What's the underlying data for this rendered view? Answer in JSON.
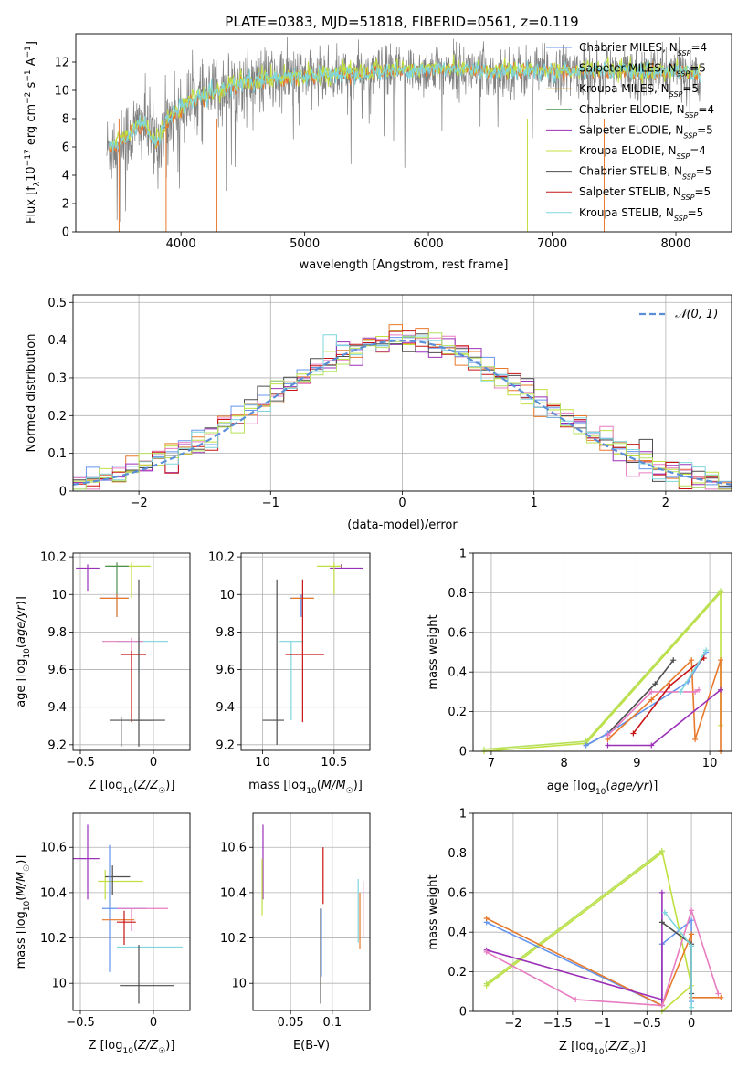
{
  "figure": {
    "title": "PLATE=0383, MJD=51818, FIBERID=0561, z=0.119"
  },
  "colors": {
    "chabrier_miles": "#6495ed",
    "salpeter_miles": "#e8792b",
    "kroupa_miles": "#d4a017",
    "chabrier_elodie": "#4f8f4f",
    "salpeter_elodie": "#9b30b8",
    "kroupa_elodie": "#c0e040",
    "chabrier_stelib": "#4d4d4d",
    "salpeter_stelib": "#c81414",
    "kroupa_stelib": "#7fd6de",
    "data_gray": "#808080",
    "pink": "#e77cc0",
    "green": "#b6e05a",
    "gauss": "#5a8fd8"
  },
  "chart_data": [
    {
      "id": "spectrum",
      "type": "line",
      "xlabel": "wavelength [Angstrom, rest frame]",
      "ylabel": "Flux [f_λ10^-17 erg cm^-2 s^-1 A^-1]",
      "xlim": [
        3150,
        8450
      ],
      "ylim": [
        0,
        14
      ],
      "xticks": [
        4000,
        5000,
        6000,
        7000,
        8000
      ],
      "yticks": [
        0,
        2,
        4,
        6,
        8,
        10,
        12
      ],
      "grid": false,
      "legend_placement": "top-right",
      "legend": [
        "Chabrier MILES, N_SSP=4",
        "Salpeter MILES, N_SSP=5",
        "Kroupa MILES, N_SSP=5",
        "Chabrier ELODIE, N_SSP=4",
        "Salpeter ELODIE, N_SSP=5",
        "Kroupa ELODIE, N_SSP=4",
        "Chabrier STELIB, N_SSP=5",
        "Salpeter STELIB, N_SSP=5",
        "Kroupa STELIB, N_SSP=5"
      ],
      "data_continuum": {
        "x": [
          3400,
          3500,
          3600,
          3700,
          3800,
          3900,
          4000,
          4100,
          4200,
          4300,
          4400,
          4500,
          4700,
          5000,
          5300,
          5600,
          5900,
          6200,
          6500,
          6800,
          7100,
          7400,
          7700,
          8000,
          8200
        ],
        "y": [
          5.8,
          6.3,
          7.0,
          7.7,
          6.2,
          8.0,
          8.7,
          9.3,
          9.5,
          9.8,
          10.3,
          10.5,
          10.7,
          11.0,
          11.1,
          11.3,
          11.4,
          11.5,
          11.3,
          11.3,
          11.3,
          11.4,
          11.2,
          11.3,
          11.1
        ]
      }
    },
    {
      "id": "residuals",
      "type": "histogram",
      "xlabel": "(data-model)/error",
      "ylabel": "Normed distribution",
      "xlim": [
        -2.5,
        2.5
      ],
      "ylim": [
        0,
        0.52
      ],
      "xticks": [
        -2,
        -1,
        0,
        1,
        2
      ],
      "yticks": [
        0,
        0.1,
        0.2,
        0.3,
        0.4,
        0.5
      ],
      "grid": true,
      "legend_placement": "top-right",
      "legend": [
        "N(0,1)"
      ],
      "gaussian": {
        "mean": 0,
        "sigma": 1
      }
    },
    {
      "id": "age_vs_Z",
      "type": "scatter",
      "xlabel": "Z [log10(Z/Z☉)]",
      "ylabel": "age [log10(age/yr)]",
      "xlim": [
        -0.55,
        0.25
      ],
      "ylim": [
        9.17,
        10.22
      ],
      "xticks": [
        -0.5,
        0.0
      ],
      "yticks": [
        9.2,
        9.4,
        9.6,
        9.8,
        10.0,
        10.2
      ],
      "grid": true,
      "points": [
        {
          "x": -0.45,
          "y": 10.14,
          "xerr": [
            0.08,
            0.08
          ],
          "yerr": [
            0.12,
            0.02
          ],
          "c": "salpeter_elodie"
        },
        {
          "x": -0.15,
          "y": 10.15,
          "xerr": [
            0.17,
            0.13
          ],
          "yerr": [
            0.17,
            0.02
          ],
          "c": "kroupa_elodie"
        },
        {
          "x": -0.25,
          "y": 10.15,
          "xerr": [
            0.08,
            0.08
          ],
          "yerr": [
            0.17,
            0.02
          ],
          "c": "chabrier_elodie"
        },
        {
          "x": -0.25,
          "y": 9.98,
          "xerr": [
            0.12,
            0.08
          ],
          "yerr": [
            0.1,
            0.02
          ],
          "c": "chabrier_miles"
        },
        {
          "x": -0.25,
          "y": 9.98,
          "xerr": [
            0.12,
            0.08
          ],
          "yerr": [
            0.1,
            0.02
          ],
          "c": "salpeter_miles"
        },
        {
          "x": -0.1,
          "y": 9.75,
          "xerr": [
            0.15,
            0.2
          ],
          "yerr": [
            0.17,
            0.02
          ],
          "c": "kroupa_stelib"
        },
        {
          "x": -0.15,
          "y": 9.75,
          "xerr": [
            0.2,
            0.08
          ],
          "yerr": [
            0.17,
            0.02
          ],
          "c": "pink"
        },
        {
          "x": -0.15,
          "y": 9.68,
          "xerr": [
            0.07,
            0.1
          ],
          "yerr": [
            0.36,
            0.02
          ],
          "c": "salpeter_stelib"
        },
        {
          "x": -0.22,
          "y": 9.33,
          "xerr": [
            0.08,
            0.3
          ],
          "yerr": [
            0.14,
            0.02
          ],
          "c": "chabrier_stelib"
        },
        {
          "x": -0.1,
          "y": 9.33,
          "xerr": [
            0.05,
            0.1
          ],
          "yerr": [
            0.14,
            0.75
          ],
          "c": "chabrier_stelib"
        }
      ]
    },
    {
      "id": "age_vs_mass",
      "type": "scatter",
      "xlabel": "mass [log10(M/M☉)]",
      "ylabel": "",
      "xlim": [
        9.85,
        10.75
      ],
      "ylim": [
        9.17,
        10.22
      ],
      "xticks": [
        10.0,
        10.5
      ],
      "yticks": [
        9.2,
        9.4,
        9.6,
        9.8,
        10.0,
        10.2
      ],
      "grid": true,
      "points": [
        {
          "x": 10.55,
          "y": 10.14,
          "xerr": [
            0.08,
            0.15
          ],
          "yerr": [
            0.0,
            0.02
          ],
          "c": "salpeter_elodie"
        },
        {
          "x": 10.5,
          "y": 10.15,
          "xerr": [
            0.12,
            0.05
          ],
          "yerr": [
            0.15,
            0.02
          ],
          "c": "kroupa_elodie"
        },
        {
          "x": 10.27,
          "y": 9.98,
          "xerr": [
            0.08,
            0.08
          ],
          "yerr": [
            0.1,
            0.02
          ],
          "c": "chabrier_miles"
        },
        {
          "x": 10.28,
          "y": 9.98,
          "xerr": [
            0.08,
            0.08
          ],
          "yerr": [
            0.1,
            0.02
          ],
          "c": "salpeter_miles"
        },
        {
          "x": 10.2,
          "y": 9.75,
          "xerr": [
            0.08,
            0.08
          ],
          "yerr": [
            0.42,
            0.0
          ],
          "c": "kroupa_stelib"
        },
        {
          "x": 10.28,
          "y": 9.68,
          "xerr": [
            0.12,
            0.15
          ],
          "yerr": [
            0.36,
            0.4
          ],
          "c": "salpeter_stelib"
        },
        {
          "x": 10.1,
          "y": 9.33,
          "xerr": [
            0.1,
            0.05
          ],
          "yerr": [
            0.13,
            0.75
          ],
          "c": "chabrier_stelib"
        }
      ]
    },
    {
      "id": "weight_vs_age",
      "type": "line",
      "xlabel": "age [log10(age/yr)]",
      "ylabel": "mass weight",
      "xlim": [
        6.75,
        10.3
      ],
      "ylim": [
        0,
        1.0
      ],
      "xticks": [
        7,
        8,
        9,
        10
      ],
      "yticks": [
        0.0,
        0.2,
        0.4,
        0.6,
        0.8,
        1.0
      ],
      "grid": true,
      "series": [
        {
          "c": "kroupa_elodie",
          "x": [
            6.9,
            8.3,
            10.15,
            10.15
          ],
          "y": [
            0.0,
            0.04,
            0.8,
            0.13
          ]
        },
        {
          "c": "green",
          "x": [
            6.9,
            8.3,
            10.15
          ],
          "y": [
            0.01,
            0.05,
            0.81
          ]
        },
        {
          "c": "chabrier_stelib",
          "x": [
            8.3,
            8.6,
            9.25,
            9.5
          ],
          "y": [
            0.03,
            0.09,
            0.34,
            0.46
          ]
        },
        {
          "c": "chabrier_miles",
          "x": [
            8.3,
            8.6,
            9.7,
            9.95
          ],
          "y": [
            0.03,
            0.09,
            0.35,
            0.5
          ]
        },
        {
          "c": "salpeter_miles",
          "x": [
            8.6,
            9.2,
            9.75,
            9.8,
            10.15,
            10.15
          ],
          "y": [
            0.06,
            0.26,
            0.46,
            0.06,
            0.46,
            0.0
          ]
        },
        {
          "c": "salpeter_elodie",
          "x": [
            8.6,
            9.2,
            10.15
          ],
          "y": [
            0.03,
            0.03,
            0.31
          ]
        },
        {
          "c": "pink",
          "x": [
            8.6,
            9.2,
            9.8,
            9.85
          ],
          "y": [
            0.08,
            0.3,
            0.3,
            0.31
          ]
        },
        {
          "c": "salpeter_stelib",
          "x": [
            8.95,
            9.45,
            9.92
          ],
          "y": [
            0.09,
            0.33,
            0.47
          ]
        },
        {
          "c": "kroupa_stelib",
          "x": [
            9.6,
            9.95
          ],
          "y": [
            0.3,
            0.51
          ]
        }
      ]
    },
    {
      "id": "mass_vs_Z",
      "type": "scatter",
      "xlabel": "Z [log10(Z/Z☉)]",
      "ylabel": "mass [log10(M/M☉)]",
      "xlim": [
        -0.55,
        0.25
      ],
      "ylim": [
        9.88,
        10.75
      ],
      "xticks": [
        -0.5,
        0.0
      ],
      "yticks": [
        10.0,
        10.2,
        10.4,
        10.6
      ],
      "grid": true,
      "points": [
        {
          "x": -0.45,
          "y": 10.55,
          "xerr": [
            0.1,
            0.08
          ],
          "yerr": [
            0.18,
            0.15
          ],
          "c": "salpeter_elodie"
        },
        {
          "x": -0.33,
          "y": 10.45,
          "xerr": [
            0.05,
            0.26
          ],
          "yerr": [
            0.08,
            0.05
          ],
          "c": "kroupa_elodie"
        },
        {
          "x": -0.28,
          "y": 10.47,
          "xerr": [
            0.05,
            0.12
          ],
          "yerr": [
            0.08,
            0.05
          ],
          "c": "chabrier_stelib"
        },
        {
          "x": -0.3,
          "y": 10.33,
          "xerr": [
            0.05,
            0.25
          ],
          "yerr": [
            0.28,
            0.28
          ],
          "c": "chabrier_miles"
        },
        {
          "x": -0.15,
          "y": 10.33,
          "xerr": [
            0.1,
            0.25
          ],
          "yerr": [
            0.1,
            0.0
          ],
          "c": "pink"
        },
        {
          "x": -0.3,
          "y": 10.28,
          "xerr": [
            0.05,
            0.17
          ],
          "yerr": [
            0.0,
            0.0
          ],
          "c": "salpeter_miles"
        },
        {
          "x": -0.2,
          "y": 10.27,
          "xerr": [
            0.05,
            0.08
          ],
          "yerr": [
            0.1,
            0.05
          ],
          "c": "salpeter_stelib"
        },
        {
          "x": -0.1,
          "y": 10.16,
          "xerr": [
            0.15,
            0.3
          ],
          "yerr": [
            0.0,
            0.0
          ],
          "c": "kroupa_stelib"
        },
        {
          "x": -0.18,
          "y": 9.99,
          "xerr": [
            0.05,
            0.32
          ],
          "yerr": [
            0.0,
            0.0
          ],
          "c": "chabrier_stelib"
        },
        {
          "x": -0.1,
          "y": 9.99,
          "xerr": [
            0.0,
            0.0
          ],
          "yerr": [
            0.08,
            0.18
          ],
          "c": "chabrier_stelib"
        }
      ]
    },
    {
      "id": "mass_vs_EBV",
      "type": "scatter",
      "xlabel": "E(B-V)",
      "ylabel": "",
      "xlim": [
        0.005,
        0.145
      ],
      "ylim": [
        9.88,
        10.75
      ],
      "xticks": [
        0.05,
        0.1
      ],
      "yticks": [
        10.0,
        10.2,
        10.4,
        10.6
      ],
      "grid": true,
      "points": [
        {
          "x": 0.017,
          "y": 10.55,
          "xerr": [
            0.0,
            0.0
          ],
          "yerr": [
            0.18,
            0.15
          ],
          "c": "salpeter_elodie"
        },
        {
          "x": 0.016,
          "y": 10.45,
          "xerr": [
            0.0,
            0.0
          ],
          "yerr": [
            0.15,
            0.1
          ],
          "c": "kroupa_elodie"
        },
        {
          "x": 0.086,
          "y": 10.33,
          "xerr": [
            0.0,
            0.0
          ],
          "yerr": [
            0.42,
            0.0
          ],
          "c": "chabrier_stelib"
        },
        {
          "x": 0.087,
          "y": 10.33,
          "xerr": [
            0.0,
            0.0
          ],
          "yerr": [
            0.3,
            0.0
          ],
          "c": "chabrier_miles"
        },
        {
          "x": 0.089,
          "y": 10.5,
          "xerr": [
            0.0,
            0.0
          ],
          "yerr": [
            0.15,
            0.1
          ],
          "c": "salpeter_stelib"
        },
        {
          "x": 0.131,
          "y": 10.33,
          "xerr": [
            0.0,
            0.0
          ],
          "yerr": [
            0.15,
            0.13
          ],
          "c": "kroupa_stelib"
        },
        {
          "x": 0.133,
          "y": 10.3,
          "xerr": [
            0.0,
            0.0
          ],
          "yerr": [
            0.15,
            0.1
          ],
          "c": "salpeter_miles"
        },
        {
          "x": 0.137,
          "y": 10.35,
          "xerr": [
            0.0,
            0.0
          ],
          "yerr": [
            0.15,
            0.1
          ],
          "c": "pink"
        }
      ]
    },
    {
      "id": "weight_vs_Z",
      "type": "line",
      "xlabel": "Z [log10(Z/Z☉)]",
      "ylabel": "mass weight",
      "xlim": [
        -2.45,
        0.45
      ],
      "ylim": [
        0,
        1.0
      ],
      "xticks": [
        -2.0,
        -1.5,
        -1.0,
        -0.5,
        0.0
      ],
      "yticks": [
        0.0,
        0.2,
        0.4,
        0.6,
        0.8,
        1.0
      ],
      "grid": true,
      "series": [
        {
          "c": "kroupa_elodie",
          "x": [
            -2.3,
            -0.33,
            -0.33,
            0.0,
            -0.33
          ],
          "y": [
            0.13,
            0.8,
            0.81,
            0.13,
            0.0
          ]
        },
        {
          "c": "green",
          "x": [
            -2.3,
            -0.33
          ],
          "y": [
            0.14,
            0.81
          ]
        },
        {
          "c": "chabrier_miles",
          "x": [
            -2.3,
            -0.33,
            -0.33,
            0.0,
            0.0
          ],
          "y": [
            0.45,
            0.03,
            0.34,
            0.46,
            0.05
          ]
        },
        {
          "c": "salpeter_miles",
          "x": [
            -2.3,
            -0.33,
            0.0,
            0.0,
            0.33
          ],
          "y": [
            0.47,
            0.03,
            0.39,
            0.07,
            0.07
          ]
        },
        {
          "c": "salpeter_elodie",
          "x": [
            -2.3,
            -0.33,
            -0.33,
            -0.33
          ],
          "y": [
            0.31,
            0.06,
            0.6,
            0.03
          ]
        },
        {
          "c": "pink",
          "x": [
            -2.3,
            -1.3,
            -0.33,
            0.0,
            0.3
          ],
          "y": [
            0.3,
            0.06,
            0.03,
            0.51,
            0.09
          ]
        },
        {
          "c": "chabrier_stelib",
          "x": [
            -0.33,
            0.0,
            0.0
          ],
          "y": [
            0.45,
            0.34,
            0.09
          ]
        },
        {
          "c": "kroupa_stelib",
          "x": [
            -0.3,
            0.0,
            0.0
          ],
          "y": [
            0.5,
            0.33,
            0.02
          ]
        }
      ]
    }
  ]
}
